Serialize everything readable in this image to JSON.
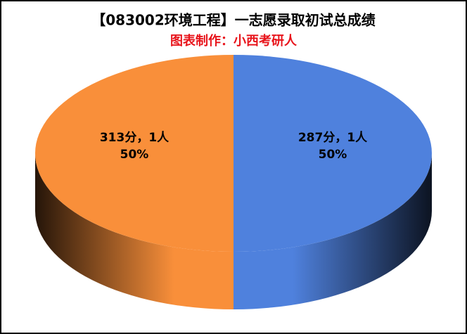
{
  "chart_data": {
    "type": "pie3d",
    "title": "【083002环境工程】一志愿录取初试总成绩",
    "subtitle": "图表制作：小西考研人",
    "categories": [
      "287分，1人",
      "313分，1人"
    ],
    "values": [
      50,
      50
    ],
    "value_labels": [
      "50%",
      "50%"
    ],
    "colors": [
      "#4f81dd",
      "#f98f3a"
    ]
  }
}
